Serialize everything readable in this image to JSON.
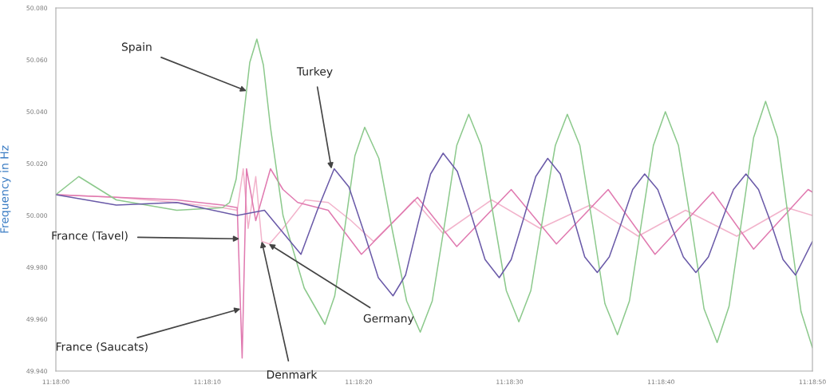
{
  "chart_data": {
    "type": "line",
    "ylabel": "Frequency in Hz",
    "xlim": [
      11.3,
      11.31389
    ],
    "xticks": [
      {
        "value": 11.3,
        "label": "11:18:00"
      },
      {
        "value": 11.30278,
        "label": "11:18:10"
      },
      {
        "value": 11.30556,
        "label": "11:18:20"
      },
      {
        "value": 11.30833,
        "label": "11:18:30"
      },
      {
        "value": 11.31111,
        "label": "11:18:40"
      },
      {
        "value": 11.31389,
        "label": "11:18:50"
      }
    ],
    "ylim": [
      49.94,
      50.08
    ],
    "yticks": [
      {
        "value": 49.94,
        "label": "49.940"
      },
      {
        "value": 49.96,
        "label": "49.960"
      },
      {
        "value": 49.98,
        "label": "49.980"
      },
      {
        "value": 50.0,
        "label": "50.000"
      },
      {
        "value": 50.02,
        "label": "50.020"
      },
      {
        "value": 50.04,
        "label": "50.040"
      },
      {
        "value": 50.06,
        "label": "50.060"
      },
      {
        "value": 50.08,
        "label": "50.080"
      }
    ],
    "grid": false,
    "legend": false,
    "marker": "none",
    "line_style": "solid",
    "series": [
      {
        "color": "#f2b3cb",
        "x": [
          11.3,
          11.30111,
          11.30222,
          11.30306,
          11.30333,
          11.30344,
          11.30353,
          11.30367,
          11.30378,
          11.30392,
          11.30417,
          11.30458,
          11.305,
          11.30542,
          11.30583,
          11.30631,
          11.30658,
          11.30711,
          11.308,
          11.30889,
          11.30981,
          11.31069,
          11.31156,
          11.3125,
          11.31342,
          11.31389
        ],
        "values": [
          50.008,
          50.007,
          50.005,
          50.003,
          50.002,
          50.018,
          49.995,
          50.015,
          49.99,
          49.989,
          49.995,
          50.006,
          50.005,
          49.998,
          49.99,
          50.0,
          50.006,
          49.993,
          50.006,
          49.995,
          50.004,
          49.992,
          50.002,
          49.992,
          50.003,
          50.0
        ]
      },
      {
        "color": "#e07ab0",
        "x": [
          11.3,
          11.30111,
          11.30222,
          11.30306,
          11.30333,
          11.30342,
          11.3035,
          11.30367,
          11.30394,
          11.30417,
          11.30444,
          11.305,
          11.30561,
          11.30664,
          11.30736,
          11.30836,
          11.30919,
          11.31014,
          11.311,
          11.31206,
          11.31281,
          11.31381,
          11.31389
        ],
        "values": [
          50.008,
          50.007,
          50.006,
          50.004,
          50.003,
          49.945,
          50.018,
          49.998,
          50.018,
          50.01,
          50.005,
          50.002,
          49.985,
          50.007,
          49.988,
          50.01,
          49.989,
          50.01,
          49.985,
          50.009,
          49.987,
          50.01,
          50.009
        ]
      },
      {
        "color": "#8cc98c",
        "x": [
          11.3,
          11.30042,
          11.30111,
          11.30222,
          11.30306,
          11.30319,
          11.30331,
          11.30344,
          11.30356,
          11.30369,
          11.30381,
          11.30394,
          11.30417,
          11.30456,
          11.30494,
          11.30512,
          11.30531,
          11.30549,
          11.30567,
          11.30593,
          11.30618,
          11.30644,
          11.30669,
          11.30691,
          11.30714,
          11.30736,
          11.30758,
          11.30781,
          11.30804,
          11.30827,
          11.3085,
          11.30872,
          11.30894,
          11.30917,
          11.30939,
          11.30962,
          11.30985,
          11.31008,
          11.31031,
          11.31053,
          11.31075,
          11.31097,
          11.31119,
          11.31143,
          11.31167,
          11.3119,
          11.31214,
          11.31236,
          11.31259,
          11.31281,
          11.31303,
          11.31325,
          11.31346,
          11.31368,
          11.31389
        ],
        "values": [
          50.008,
          50.015,
          50.006,
          50.002,
          50.003,
          50.005,
          50.014,
          50.037,
          50.059,
          50.068,
          50.058,
          50.034,
          50.0,
          49.972,
          49.958,
          49.969,
          49.996,
          50.023,
          50.034,
          50.022,
          49.994,
          49.967,
          49.955,
          49.967,
          49.997,
          50.027,
          50.039,
          50.027,
          49.999,
          49.971,
          49.959,
          49.971,
          49.999,
          50.027,
          50.039,
          50.027,
          49.997,
          49.966,
          49.954,
          49.967,
          49.997,
          50.027,
          50.04,
          50.027,
          49.996,
          49.964,
          49.951,
          49.965,
          49.998,
          50.03,
          50.044,
          50.03,
          49.997,
          49.963,
          49.949
        ]
      },
      {
        "color": "#6a5aa8",
        "x": [
          11.3,
          11.30111,
          11.30222,
          11.30333,
          11.30383,
          11.3045,
          11.3048,
          11.30511,
          11.30538,
          11.30565,
          11.30592,
          11.30619,
          11.30642,
          11.30665,
          11.30688,
          11.30711,
          11.30737,
          11.30763,
          11.30788,
          11.30814,
          11.30836,
          11.30859,
          11.30881,
          11.30903,
          11.30926,
          11.30949,
          11.30971,
          11.30994,
          11.31016,
          11.31038,
          11.31059,
          11.31081,
          11.31105,
          11.31128,
          11.31152,
          11.31175,
          11.31198,
          11.31221,
          11.31244,
          11.31267,
          11.3129,
          11.31313,
          11.31335,
          11.31358,
          11.31389
        ],
        "values": [
          50.008,
          50.004,
          50.005,
          50.0,
          50.002,
          49.985,
          50.002,
          50.018,
          50.011,
          49.994,
          49.976,
          49.969,
          49.977,
          49.997,
          50.016,
          50.024,
          50.017,
          50.0,
          49.983,
          49.976,
          49.983,
          49.999,
          50.015,
          50.022,
          50.016,
          50.0,
          49.984,
          49.978,
          49.984,
          49.997,
          50.01,
          50.016,
          50.01,
          49.997,
          49.984,
          49.978,
          49.984,
          49.997,
          50.01,
          50.016,
          50.01,
          49.997,
          49.983,
          49.977,
          49.99
        ]
      }
    ],
    "annotations": [
      {
        "text": "Spain",
        "x": 11.3035,
        "y": 50.048
      },
      {
        "text": "Turkey",
        "x": 11.30506,
        "y": 50.018
      },
      {
        "text": "France (Tavel)",
        "x": 11.30337,
        "y": 49.991
      },
      {
        "text": "Germany",
        "x": 11.30391,
        "y": 49.989
      },
      {
        "text": "France (Saucats)",
        "x": 11.30339,
        "y": 49.964
      },
      {
        "text": "Denmark",
        "x": 11.30378,
        "y": 49.99
      }
    ]
  }
}
